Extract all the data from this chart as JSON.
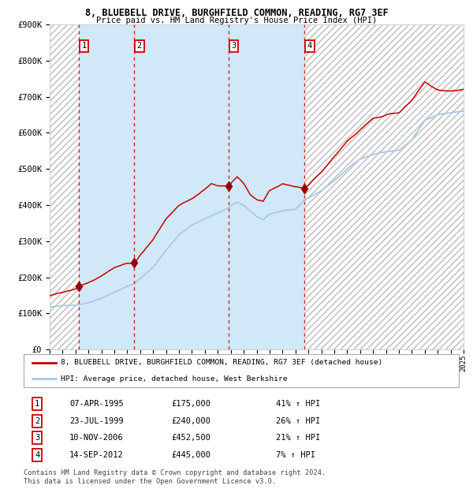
{
  "title1": "8, BLUEBELL DRIVE, BURGHFIELD COMMON, READING, RG7 3EF",
  "title2": "Price paid vs. HM Land Registry's House Price Index (HPI)",
  "ylim": [
    0,
    900000
  ],
  "yticks": [
    0,
    100000,
    200000,
    300000,
    400000,
    500000,
    600000,
    700000,
    800000,
    900000
  ],
  "ytick_labels": [
    "£0",
    "£100K",
    "£200K",
    "£300K",
    "£400K",
    "£500K",
    "£600K",
    "£700K",
    "£800K",
    "£900K"
  ],
  "hpi_color": "#a8c8e8",
  "price_color": "#cc0000",
  "sale_marker_color": "#990000",
  "vline_color": "#cc2222",
  "shade_color": "#d0e8f8",
  "grid_color": "#cccccc",
  "sale_dates": [
    1995.27,
    1999.55,
    2006.85,
    2012.71
  ],
  "sale_prices": [
    175000,
    240000,
    452500,
    445000
  ],
  "sale_labels": [
    "1",
    "2",
    "3",
    "4"
  ],
  "legend_line1": "8, BLUEBELL DRIVE, BURGHFIELD COMMON, READING, RG7 3EF (detached house)",
  "legend_line2": "HPI: Average price, detached house, West Berkshire",
  "table_data": [
    [
      "1",
      "07-APR-1995",
      "£175,000",
      "41% ↑ HPI"
    ],
    [
      "2",
      "23-JUL-1999",
      "£240,000",
      "26% ↑ HPI"
    ],
    [
      "3",
      "10-NOV-2006",
      "£452,500",
      "21% ↑ HPI"
    ],
    [
      "4",
      "14-SEP-2012",
      "£445,000",
      "7% ↑ HPI"
    ]
  ],
  "footnote": "Contains HM Land Registry data © Crown copyright and database right 2024.\nThis data is licensed under the Open Government Licence v3.0.",
  "bg_color": "#ffffff"
}
